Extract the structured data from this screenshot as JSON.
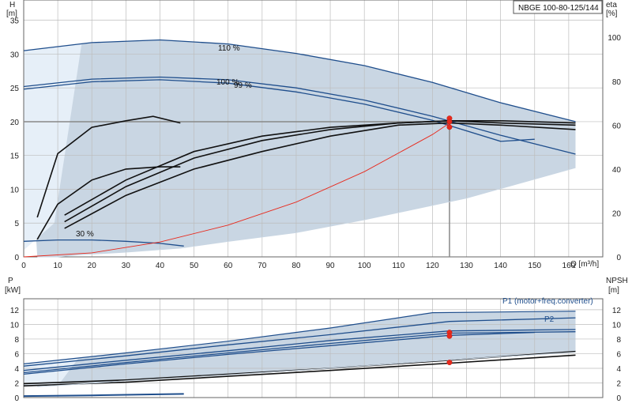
{
  "title": "NBGE 100-80-125/144",
  "colors": {
    "grid": "#bdbdbd",
    "envelope_fill": "#c9d6e3",
    "envelope_stroke": "#1f4e8c",
    "left_region": "#e6eff8",
    "curve_blue": "#1f4e8c",
    "curve_black": "#111111",
    "system_curve": "#e8291c",
    "duty_point": "#e8291c"
  },
  "chart_data": [
    {
      "id": "head",
      "type": "line",
      "xlabel": "Q [m³/h]",
      "ylabel_top": "H",
      "ylabel_unit": "[m]",
      "y2label_top": "eta",
      "y2label_unit": "[%]",
      "xlim": [
        0,
        170
      ],
      "ylim": [
        0,
        38
      ],
      "y2lim": [
        0,
        117
      ],
      "xticks": [
        0,
        10,
        20,
        30,
        40,
        50,
        60,
        70,
        80,
        90,
        100,
        110,
        120,
        130,
        140,
        150,
        160
      ],
      "yticks": [
        0,
        5,
        10,
        15,
        20,
        25,
        30,
        35
      ],
      "y2ticks": [
        0,
        20,
        40,
        60,
        80,
        100
      ],
      "grid": true,
      "annotations": [
        "110 %",
        "100 %",
        "99 %",
        "30 %"
      ],
      "series": [
        {
          "kind": "envelope-top",
          "x": [
            0,
            20,
            40,
            60,
            80,
            100,
            120,
            140,
            162
          ],
          "y": [
            30.5,
            31.7,
            32.1,
            31.5,
            30.1,
            28.3,
            25.8,
            22.8,
            20.0
          ]
        },
        {
          "kind": "envelope-bottom",
          "x": [
            162,
            130,
            100,
            80,
            60,
            46,
            30,
            16,
            10,
            4
          ],
          "y": [
            13.2,
            8.7,
            5.5,
            3.6,
            2.3,
            1.3,
            0.7,
            0.3,
            0.0,
            0.0
          ]
        },
        {
          "label": "110 %",
          "kind": "head",
          "x": [
            0,
            20,
            40,
            60,
            80,
            100,
            120,
            140,
            162
          ],
          "y": [
            30.5,
            31.7,
            32.1,
            31.5,
            30.1,
            28.3,
            25.8,
            22.8,
            20.0
          ]
        },
        {
          "label": "100 %",
          "kind": "head",
          "x": [
            0,
            20,
            40,
            60,
            80,
            100,
            120,
            140,
            162
          ],
          "y": [
            25.2,
            26.3,
            26.6,
            26.2,
            25.0,
            23.2,
            20.8,
            18.0,
            15.2
          ]
        },
        {
          "label": "99 %",
          "kind": "head",
          "x": [
            0,
            20,
            40,
            60,
            80,
            100,
            120,
            140,
            150
          ],
          "y": [
            24.8,
            25.9,
            26.2,
            25.7,
            24.4,
            22.6,
            20.2,
            17.1,
            17.4
          ]
        },
        {
          "label": "30 %",
          "kind": "head",
          "x": [
            0,
            10,
            20,
            30,
            40,
            47
          ],
          "y": [
            2.3,
            2.5,
            2.5,
            2.3,
            2.0,
            1.6
          ]
        },
        {
          "kind": "eta",
          "x": [
            4,
            10,
            20,
            30,
            38,
            46
          ],
          "y": [
            18,
            47,
            59,
            62,
            64,
            61
          ]
        },
        {
          "kind": "eta",
          "x": [
            4,
            10,
            20,
            30,
            40,
            46
          ],
          "y": [
            8,
            24,
            35,
            40,
            41,
            41
          ]
        },
        {
          "kind": "eta",
          "x": [
            12,
            30,
            50,
            70,
            90,
            110,
            125,
            140,
            162
          ],
          "y": [
            13,
            28,
            40,
            48,
            55,
            60,
            61,
            60,
            58
          ]
        },
        {
          "kind": "eta",
          "x": [
            12,
            30,
            50,
            70,
            90,
            110,
            125,
            140,
            162
          ],
          "y": [
            16,
            32,
            45,
            53,
            58,
            61,
            62,
            61,
            60
          ]
        },
        {
          "kind": "eta",
          "x": [
            12,
            30,
            50,
            70,
            90,
            110,
            125,
            140,
            162
          ],
          "y": [
            19,
            35,
            48,
            55,
            59,
            61,
            62,
            62,
            61
          ]
        },
        {
          "kind": "system",
          "x": [
            0,
            20,
            40,
            60,
            80,
            100,
            120,
            125
          ],
          "y": [
            0,
            0.6,
            2.2,
            4.7,
            8.1,
            12.6,
            18.1,
            19.8
          ]
        }
      ],
      "duty_points": [
        {
          "x": 125,
          "y": 20.5
        },
        {
          "x": 125,
          "y": 20.0
        },
        {
          "x": 125,
          "y": 19.2
        }
      ],
      "reference_lines": {
        "h": 20.0,
        "q": 125
      }
    },
    {
      "id": "power",
      "type": "line",
      "xlabel": "",
      "ylabel_top": "P",
      "ylabel_unit": "[kW]",
      "y2label_top": "NPSH",
      "y2label_unit": "[m]",
      "xlim": [
        0,
        170
      ],
      "ylim": [
        0,
        13.5
      ],
      "yticks": [
        0,
        2,
        4,
        6,
        8,
        10,
        12
      ],
      "y2ticks": [
        0,
        2,
        4,
        6,
        8,
        10,
        12
      ],
      "grid": true,
      "legend": [
        "P1 (motor+freq.converter)",
        "P2"
      ],
      "series": [
        {
          "kind": "envelope-top",
          "x": [
            0,
            30,
            60,
            90,
            120,
            162
          ],
          "y": [
            4.6,
            6.1,
            7.7,
            9.5,
            11.6,
            11.8
          ]
        },
        {
          "kind": "envelope-bottom",
          "x": [
            162,
            120,
            90,
            60,
            30,
            12,
            4
          ],
          "y": [
            6.2,
            5.0,
            4.0,
            3.1,
            2.3,
            1.7,
            1.5
          ]
        },
        {
          "label": "P1 (motor+freq.converter)",
          "kind": "power",
          "x": [
            0,
            30,
            60,
            90,
            125,
            162
          ],
          "y": [
            4.3,
            5.7,
            7.2,
            8.6,
            10.4,
            10.9
          ]
        },
        {
          "kind": "power",
          "x": [
            0,
            30,
            60,
            90,
            125,
            162
          ],
          "y": [
            3.7,
            5.1,
            6.4,
            7.8,
            9.1,
            9.3
          ]
        },
        {
          "label": "P2",
          "kind": "power",
          "x": [
            0,
            30,
            60,
            90,
            125,
            162
          ],
          "y": [
            3.4,
            4.8,
            6.1,
            7.4,
            8.8,
            9.0
          ]
        },
        {
          "kind": "power",
          "x": [
            0,
            30,
            60,
            90,
            125,
            150
          ],
          "y": [
            3.2,
            4.6,
            5.9,
            7.1,
            8.5,
            8.9
          ]
        },
        {
          "kind": "power-low",
          "x": [
            0,
            20,
            47
          ],
          "y": [
            0.2,
            0.3,
            0.5
          ]
        },
        {
          "kind": "npsh",
          "x": [
            0,
            30,
            60,
            90,
            125,
            162
          ],
          "y": [
            1.9,
            2.4,
            3.2,
            4.0,
            5.1,
            6.3
          ]
        },
        {
          "kind": "npsh",
          "x": [
            0,
            30,
            60,
            90,
            125,
            162
          ],
          "y": [
            1.6,
            2.1,
            2.9,
            3.7,
            4.7,
            5.8
          ]
        }
      ],
      "duty_points": [
        {
          "x": 125,
          "y": 8.9
        },
        {
          "x": 125,
          "y": 8.4
        },
        {
          "x": 125,
          "y": 4.8
        }
      ]
    }
  ]
}
